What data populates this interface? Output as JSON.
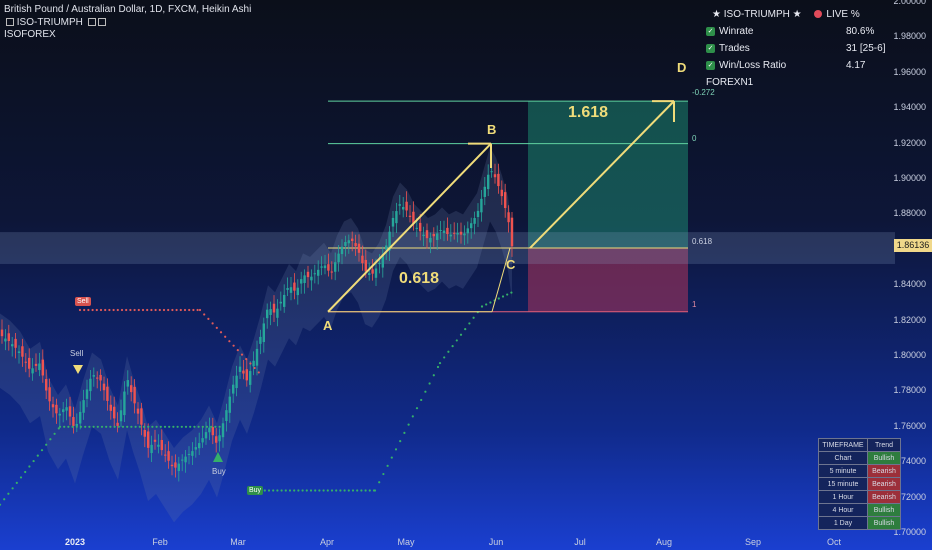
{
  "header": {
    "symbol_line": "British Pound / Australian Dollar, 1D, FXCM, Heikin Ashi",
    "indicator_line": "ISO-TRIUMPH",
    "brand_line": "ISOFOREX"
  },
  "stats_panel": {
    "title": "★ ISO-TRIUMPH ★",
    "live_label": "LIVE %",
    "rows": [
      {
        "label": "Winrate",
        "value": "80.6%"
      },
      {
        "label": "Trades",
        "value": "31 [25-6]"
      },
      {
        "label": "Win/Loss Ratio",
        "value": "4.17"
      }
    ],
    "footer": "FOREXN1"
  },
  "trend_table": {
    "header": [
      "TIMEFRAME",
      "Trend"
    ],
    "rows": [
      {
        "tf": "Chart",
        "trend": "Bullish",
        "state": "bull"
      },
      {
        "tf": "5 minute",
        "trend": "Bearish",
        "state": "bear"
      },
      {
        "tf": "15 minute",
        "trend": "Bearish",
        "state": "bear"
      },
      {
        "tf": "1 Hour",
        "trend": "Bearish",
        "state": "bear"
      },
      {
        "tf": "4 Hour",
        "trend": "Bullish",
        "state": "bull"
      },
      {
        "tf": "1 Day",
        "trend": "Bullish",
        "state": "bull"
      }
    ]
  },
  "annotations": {
    "point_a": "A",
    "point_b": "B",
    "point_c": "C",
    "point_d": "D",
    "ratio_bc": "0.618",
    "ratio_cd": "1.618",
    "fib_levels": [
      "-0.272",
      "0",
      "0.618",
      "1"
    ],
    "sell_tag": "Sell",
    "sell_label": "Sell",
    "buy_label": "Buy",
    "buy_tag": "Buy"
  },
  "price_tag": "1.86136",
  "colors": {
    "bull": "#26a69a",
    "bear": "#ef5350",
    "pattern": "#f0dc7a",
    "target_zone": "#1f9e7a",
    "stop_zone": "#b0355c",
    "band": "#6b7aa8"
  },
  "chart_data": {
    "type": "candlestick",
    "x_ticks": [
      "2023",
      "Feb",
      "Mar",
      "Apr",
      "May",
      "Jun",
      "Jul",
      "Aug",
      "Sep",
      "Oct"
    ],
    "y_ticks": [
      "2.00000",
      "1.98000",
      "1.96000",
      "1.94000",
      "1.92000",
      "1.90000",
      "1.88000",
      "1.86000",
      "1.84000",
      "1.82000",
      "1.80000",
      "1.78000",
      "1.76000",
      "1.74000",
      "1.72000",
      "1.70000"
    ],
    "ylim": [
      1.7,
      2.0
    ],
    "last_price": 1.86136,
    "close_path": [
      [
        0,
        1.812
      ],
      [
        10,
        1.808
      ],
      [
        20,
        1.802
      ],
      [
        30,
        1.792
      ],
      [
        40,
        1.796
      ],
      [
        48,
        1.776
      ],
      [
        58,
        1.766
      ],
      [
        66,
        1.772
      ],
      [
        75,
        1.758
      ],
      [
        83,
        1.774
      ],
      [
        92,
        1.79
      ],
      [
        101,
        1.786
      ],
      [
        110,
        1.77
      ],
      [
        118,
        1.76
      ],
      [
        127,
        1.788
      ],
      [
        133,
        1.776
      ],
      [
        140,
        1.764
      ],
      [
        148,
        1.748
      ],
      [
        156,
        1.752
      ],
      [
        165,
        1.744
      ],
      [
        174,
        1.736
      ],
      [
        183,
        1.742
      ],
      [
        192,
        1.746
      ],
      [
        201,
        1.752
      ],
      [
        209,
        1.76
      ],
      [
        217,
        1.75
      ],
      [
        224,
        1.764
      ],
      [
        232,
        1.782
      ],
      [
        240,
        1.794
      ],
      [
        247,
        1.786
      ],
      [
        254,
        1.798
      ],
      [
        261,
        1.812
      ],
      [
        268,
        1.828
      ],
      [
        275,
        1.824
      ],
      [
        282,
        1.832
      ],
      [
        289,
        1.84
      ],
      [
        296,
        1.836
      ],
      [
        303,
        1.846
      ],
      [
        310,
        1.844
      ],
      [
        317,
        1.848
      ],
      [
        324,
        1.852
      ],
      [
        331,
        1.846
      ],
      [
        337,
        1.856
      ],
      [
        344,
        1.864
      ],
      [
        351,
        1.866
      ],
      [
        358,
        1.86
      ],
      [
        365,
        1.848
      ],
      [
        372,
        1.846
      ],
      [
        379,
        1.852
      ],
      [
        386,
        1.862
      ],
      [
        393,
        1.878
      ],
      [
        400,
        1.886
      ],
      [
        407,
        1.882
      ],
      [
        414,
        1.874
      ],
      [
        421,
        1.87
      ],
      [
        428,
        1.866
      ],
      [
        435,
        1.868
      ],
      [
        442,
        1.872
      ],
      [
        449,
        1.868
      ],
      [
        456,
        1.87
      ],
      [
        463,
        1.868
      ],
      [
        470,
        1.874
      ],
      [
        477,
        1.88
      ],
      [
        484,
        1.894
      ],
      [
        490,
        1.906
      ],
      [
        496,
        1.9
      ],
      [
        502,
        1.89
      ],
      [
        508,
        1.878
      ],
      [
        512,
        1.862
      ]
    ],
    "trailing_stop_sell": [
      [
        80,
        1.826
      ],
      [
        200,
        1.826
      ],
      [
        260,
        1.79
      ]
    ],
    "trailing_stop_buy_lower": [
      [
        0,
        1.716
      ],
      [
        60,
        1.76
      ],
      [
        220,
        1.76
      ]
    ],
    "trailing_stop_buy_upper": [
      [
        248,
        1.724
      ],
      [
        375,
        1.724
      ],
      [
        440,
        1.796
      ],
      [
        482,
        1.828
      ],
      [
        512,
        1.836
      ]
    ],
    "harmonic_pattern": {
      "A": [
        1.825,
        "Apr"
      ],
      "B": [
        1.92,
        "late May"
      ],
      "C": [
        1.861,
        "early Jun"
      ],
      "D": [
        1.944,
        "Aug"
      ],
      "fib": {
        "-0.272": 1.944,
        "0": 1.92,
        "0.618": 1.861,
        "1": 1.825
      }
    }
  }
}
